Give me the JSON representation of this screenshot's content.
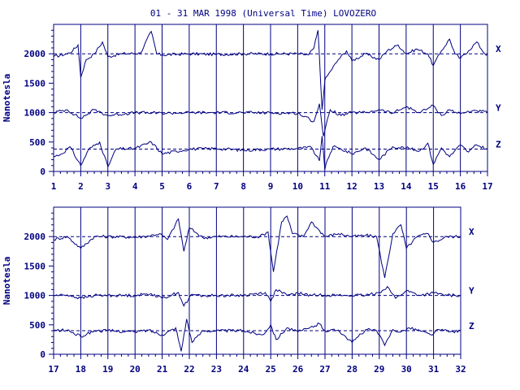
{
  "title": "01 - 31 MAR 1998 (Universal Time) LOVOZERO",
  "colors": {
    "ink": "#000080",
    "background": "#ffffff"
  },
  "chart_data": [
    {
      "type": "line",
      "panel": "top",
      "xlabel": "",
      "ylabel": "Nanotesla",
      "x_range": [
        1,
        17
      ],
      "x_ticks": [
        "1",
        "2",
        "3",
        "4",
        "5",
        "6",
        "7",
        "8",
        "9",
        "10",
        "11",
        "12",
        "13",
        "14",
        "15",
        "16",
        "17"
      ],
      "ylim": [
        0,
        2500
      ],
      "y_ticks": [
        "0",
        "500",
        "1000",
        "1500",
        "2000"
      ],
      "grid": "vertical lines at each day",
      "components": [
        "X",
        "Y",
        "Z"
      ],
      "baselines": [
        2000,
        1000,
        380
      ],
      "series": [
        {
          "name": "X",
          "x": [
            1,
            1.5,
            1.7,
            1.9,
            2.0,
            2.2,
            2.5,
            2.8,
            3.0,
            3.5,
            4.2,
            4.6,
            4.8,
            5.0,
            6,
            7,
            8,
            9,
            10,
            10.4,
            10.6,
            10.75,
            10.9,
            11.0,
            11.2,
            11.5,
            11.8,
            12.0,
            12.5,
            13.0,
            13.3,
            13.7,
            14.0,
            14.4,
            14.8,
            15.0,
            15.3,
            15.6,
            15.8,
            16.0,
            16.3,
            16.6,
            16.9,
            17
          ],
          "values": [
            1950,
            2000,
            2050,
            2150,
            1600,
            1900,
            2000,
            2200,
            1950,
            2000,
            2010,
            2380,
            2000,
            1980,
            2000,
            1990,
            2000,
            2000,
            2000,
            1980,
            2100,
            2400,
            1050,
            1550,
            1700,
            1900,
            2050,
            1880,
            2000,
            1900,
            2050,
            2150,
            2000,
            2080,
            2000,
            1800,
            2050,
            2250,
            2000,
            1920,
            2050,
            2200,
            2000,
            1990
          ]
        },
        {
          "name": "Y",
          "x": [
            1,
            1.5,
            2.0,
            2.5,
            3.0,
            4,
            5,
            6,
            7,
            8,
            9,
            10,
            10.6,
            10.8,
            10.95,
            11.2,
            11.6,
            12.0,
            12.5,
            13.0,
            13.5,
            14.0,
            14.5,
            15.0,
            15.3,
            15.6,
            16.0,
            16.5,
            17
          ],
          "values": [
            1000,
            1050,
            900,
            1050,
            950,
            1000,
            990,
            1000,
            1000,
            1000,
            995,
            990,
            850,
            1150,
            600,
            1050,
            950,
            1000,
            1000,
            1050,
            990,
            1100,
            1000,
            1120,
            950,
            1050,
            980,
            1040,
            1000
          ]
        },
        {
          "name": "Z",
          "x": [
            1,
            1.3,
            1.6,
            2.0,
            2.3,
            2.7,
            3.0,
            3.3,
            4,
            4.6,
            5.0,
            6,
            7,
            8,
            9,
            10,
            10.5,
            10.8,
            10.9,
            11.0,
            11.1,
            11.3,
            11.6,
            12.0,
            12.5,
            13.0,
            13.5,
            14.0,
            14.5,
            14.8,
            15.0,
            15.3,
            15.6,
            16.0,
            16.3,
            16.6,
            17
          ],
          "values": [
            250,
            300,
            420,
            100,
            380,
            500,
            80,
            380,
            390,
            500,
            300,
            380,
            390,
            360,
            380,
            390,
            410,
            180,
            600,
            30,
            200,
            420,
            380,
            300,
            400,
            200,
            420,
            400,
            350,
            480,
            120,
            400,
            250,
            450,
            330,
            450,
            380
          ]
        }
      ]
    },
    {
      "type": "line",
      "panel": "bottom",
      "xlabel": "",
      "ylabel": "Nanotesla",
      "x_range": [
        17,
        32
      ],
      "x_ticks": [
        "17",
        "18",
        "19",
        "20",
        "21",
        "22",
        "23",
        "24",
        "25",
        "26",
        "27",
        "28",
        "29",
        "30",
        "31",
        "32"
      ],
      "ylim": [
        0,
        2500
      ],
      "y_ticks": [
        "0",
        "500",
        "1000",
        "1500",
        "2000"
      ],
      "grid": "vertical lines at each day",
      "components": [
        "X",
        "Y",
        "Z"
      ],
      "baselines": [
        2000,
        1000,
        400
      ],
      "series": [
        {
          "name": "X",
          "x": [
            17,
            17.5,
            18.0,
            18.5,
            19,
            20,
            20.5,
            20.9,
            21.2,
            21.6,
            21.8,
            22.0,
            22.3,
            22.5,
            23,
            24,
            24.6,
            24.9,
            25.1,
            25.4,
            25.6,
            25.8,
            26.2,
            26.5,
            26.8,
            27.0,
            27.5,
            28.0,
            28.5,
            28.9,
            29.2,
            29.5,
            29.8,
            30.0,
            30.4,
            30.8,
            31.0,
            31.5,
            32
          ],
          "values": [
            1950,
            2000,
            1800,
            2000,
            2000,
            1990,
            2010,
            2050,
            1950,
            2300,
            1750,
            2150,
            2050,
            1980,
            2000,
            2000,
            2000,
            2080,
            1400,
            2250,
            2350,
            2050,
            2000,
            2250,
            2100,
            2000,
            2050,
            2000,
            2020,
            2000,
            1300,
            2050,
            2200,
            1800,
            2000,
            2050,
            1900,
            2000,
            2000
          ]
        },
        {
          "name": "Y",
          "x": [
            17,
            17.5,
            18.0,
            18.5,
            19,
            20,
            20.6,
            21.0,
            21.6,
            21.8,
            22.1,
            22.5,
            23,
            24,
            24.8,
            25.0,
            25.2,
            25.6,
            26,
            26.5,
            27.0,
            27.5,
            28.0,
            28.5,
            29.0,
            29.3,
            29.6,
            30.0,
            30.5,
            31.0,
            31.5,
            32
          ],
          "values": [
            1000,
            1010,
            950,
            1000,
            1000,
            1000,
            1030,
            950,
            1050,
            820,
            1020,
            990,
            1000,
            1000,
            1050,
            900,
            1100,
            1000,
            1040,
            1000,
            1010,
            1000,
            1000,
            1000,
            1050,
            1150,
            950,
            1080,
            1000,
            1040,
            1000,
            1000
          ]
        },
        {
          "name": "Z",
          "x": [
            17,
            17.5,
            18.0,
            18.5,
            19,
            20,
            20.5,
            21.0,
            21.5,
            21.7,
            21.9,
            22.1,
            22.5,
            23,
            24,
            24.7,
            25.0,
            25.2,
            25.6,
            26.0,
            26.4,
            26.8,
            27.0,
            27.5,
            28.0,
            28.5,
            28.9,
            29.2,
            29.5,
            29.8,
            30.1,
            30.5,
            30.9,
            31.2,
            31.6,
            32
          ],
          "values": [
            400,
            410,
            300,
            400,
            400,
            380,
            410,
            330,
            450,
            50,
            600,
            200,
            400,
            400,
            400,
            330,
            500,
            250,
            450,
            380,
            440,
            520,
            400,
            410,
            200,
            420,
            400,
            150,
            420,
            380,
            450,
            400,
            330,
            420,
            380,
            400
          ]
        }
      ]
    }
  ]
}
